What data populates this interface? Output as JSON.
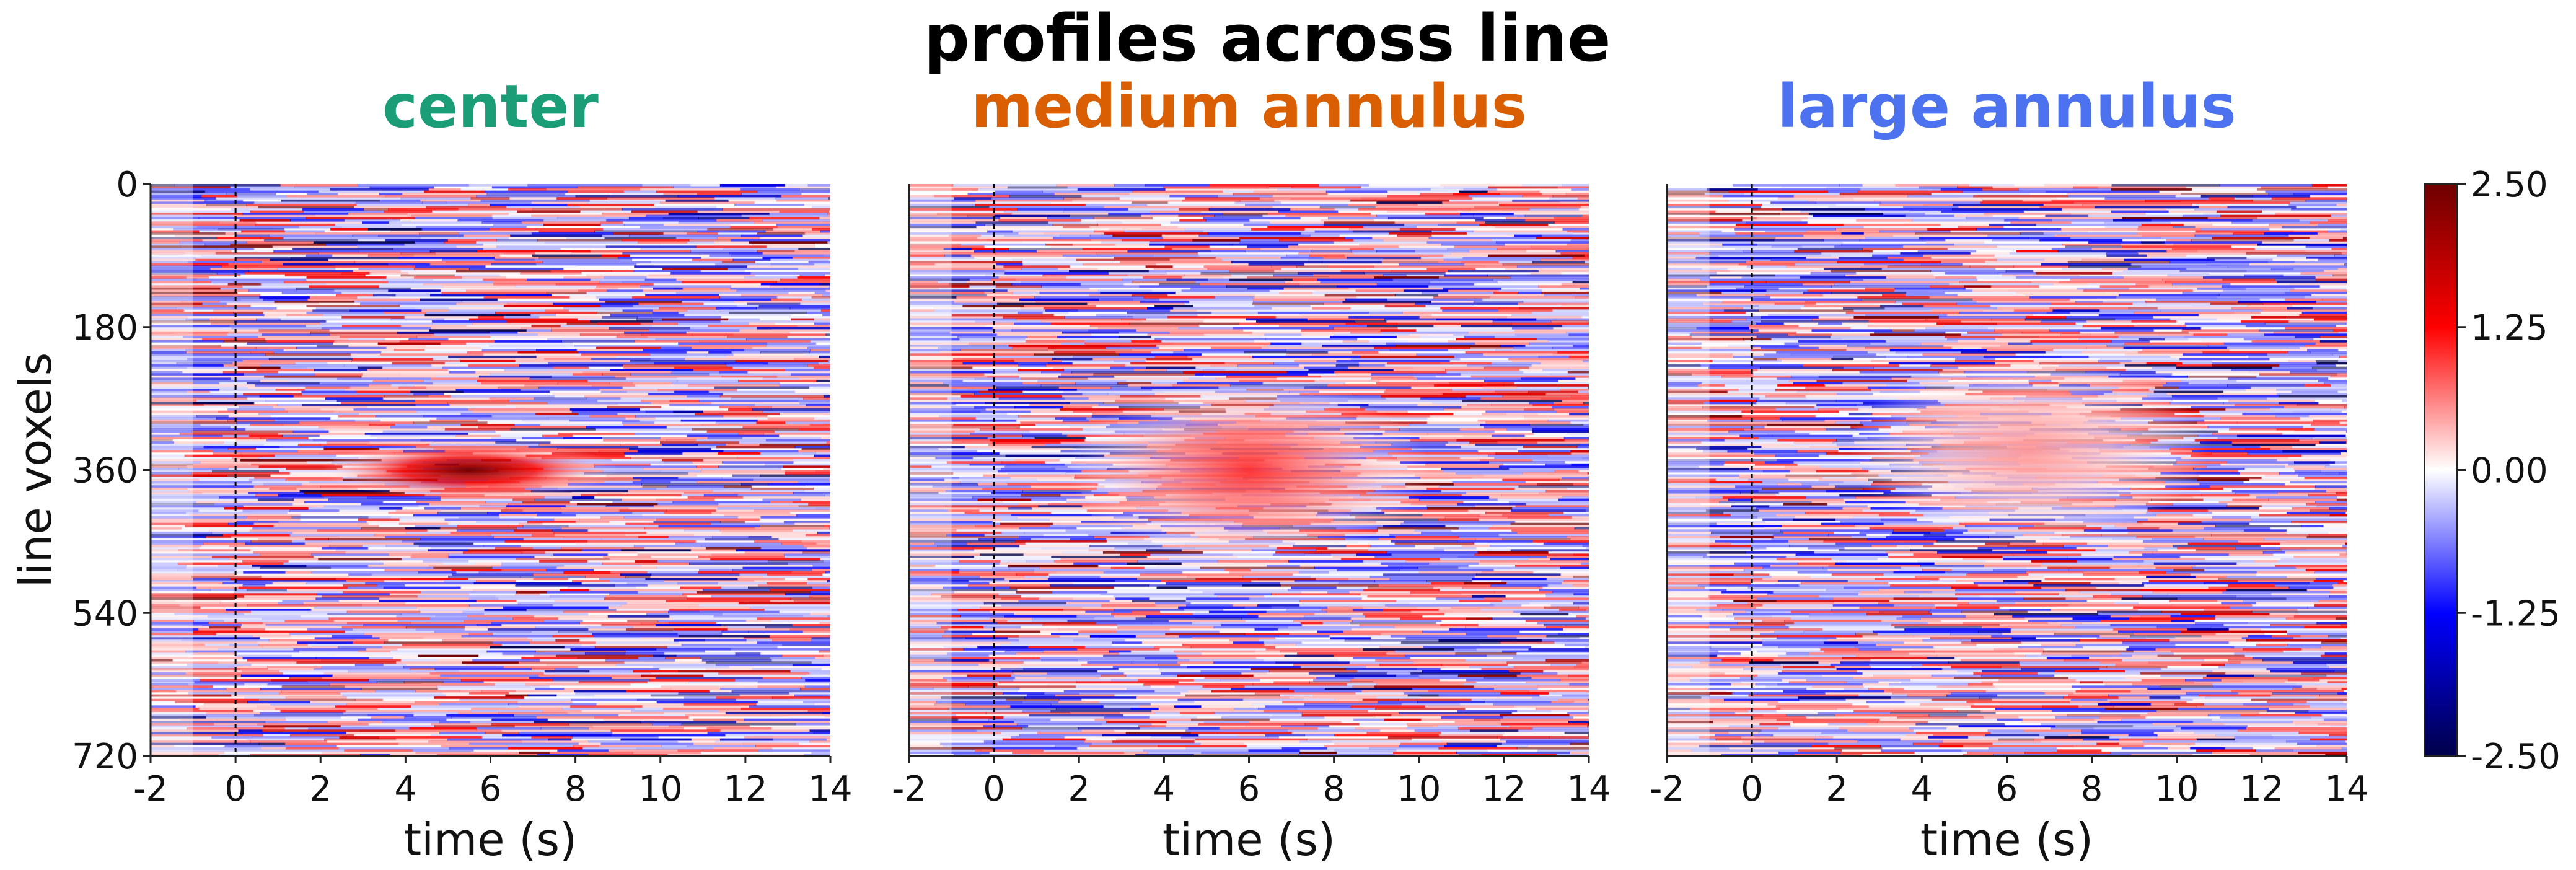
{
  "figure": {
    "suptitle": "profiles across line",
    "colors": {
      "cmap_low": "#00004a",
      "cmap_mid": "#ffffff",
      "cmap_high": "#6e0000",
      "stim_line": "#000000"
    }
  },
  "chart_data": [
    {
      "type": "heatmap",
      "title": "center",
      "title_color": "#1b9e77",
      "xlabel": "time (s)",
      "ylabel": "line voxels",
      "xlim": [
        -2,
        14
      ],
      "ylim": [
        720,
        0
      ],
      "xticks": [
        -2,
        0,
        2,
        4,
        6,
        8,
        10,
        12,
        14
      ],
      "yticks": [
        0,
        180,
        360,
        540,
        720
      ],
      "stimulus_onset": 0,
      "response": {
        "peak_time": 5.5,
        "voxel_center": 360,
        "amplitude": 2.5,
        "sign": "positive"
      }
    },
    {
      "type": "heatmap",
      "title": "medium annulus",
      "title_color": "#d95f02",
      "xlabel": "time (s)",
      "xlim": [
        -2,
        14
      ],
      "ylim": [
        720,
        0
      ],
      "xticks": [
        -2,
        0,
        2,
        4,
        6,
        8,
        10,
        12,
        14
      ],
      "stimulus_onset": 0,
      "response": {
        "peak_time": 6,
        "voxel_center": 360,
        "amplitude": 1.0,
        "sign": "positive"
      }
    },
    {
      "type": "heatmap",
      "title": "large annulus",
      "title_color": "#4c72f0",
      "xlabel": "time (s)",
      "xlim": [
        -2,
        14
      ],
      "ylim": [
        720,
        0
      ],
      "xticks": [
        -2,
        0,
        2,
        4,
        6,
        8,
        10,
        12,
        14
      ],
      "stimulus_onset": 0,
      "response": {
        "peak_time": 6.5,
        "voxel_center": 335,
        "amplitude": 0.5,
        "sign": "positive"
      }
    }
  ],
  "colorbar": {
    "vmin": -2.5,
    "vmax": 2.5,
    "ticks": [
      "2.50",
      "1.25",
      "0.00",
      "-1.25",
      "-2.50"
    ]
  }
}
